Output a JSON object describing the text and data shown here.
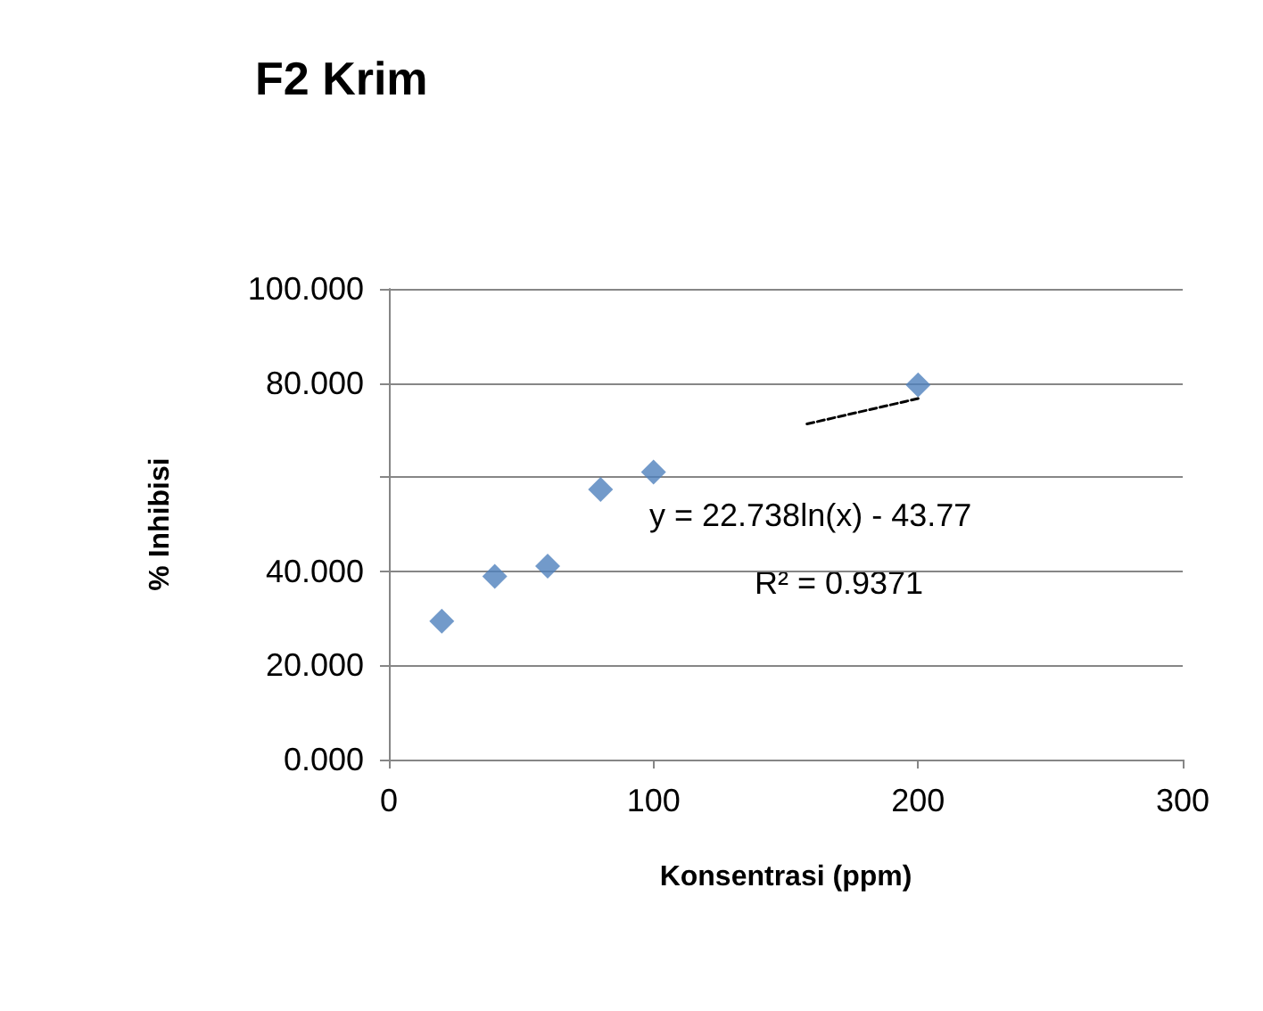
{
  "chart_data": {
    "type": "scatter",
    "title": "F2 Krim",
    "xlabel": "Konsentrasi (ppm)",
    "ylabel": "% Inhibisi",
    "xlim": [
      0,
      300
    ],
    "xticks": [
      0,
      100,
      200,
      300
    ],
    "ylim": [
      0,
      100
    ],
    "yticks": [
      {
        "value": 0,
        "label": "0.000"
      },
      {
        "value": 20,
        "label": "20.000"
      },
      {
        "value": 40,
        "label": "40.000"
      },
      {
        "value": 60,
        "label": null
      },
      {
        "value": 80,
        "label": "80.000"
      },
      {
        "value": 100,
        "label": "100.000"
      }
    ],
    "grid": "y",
    "series": [
      {
        "color": "#4f81bd",
        "marker": "diamond",
        "x": [
          20,
          40,
          60,
          80,
          100,
          200
        ],
        "values": [
          29.4,
          38.9,
          41.1,
          57.4,
          61.1,
          79.6
        ]
      },
      {
        "type": "line",
        "color": "#000000",
        "marker": "none",
        "line_style": "dotted",
        "x": [
          158,
          200
        ],
        "values": [
          71.3,
          76.7
        ]
      }
    ],
    "annotations": [
      "y = 22.738ln(x) - 43.77",
      "R² = 0.9371"
    ]
  }
}
